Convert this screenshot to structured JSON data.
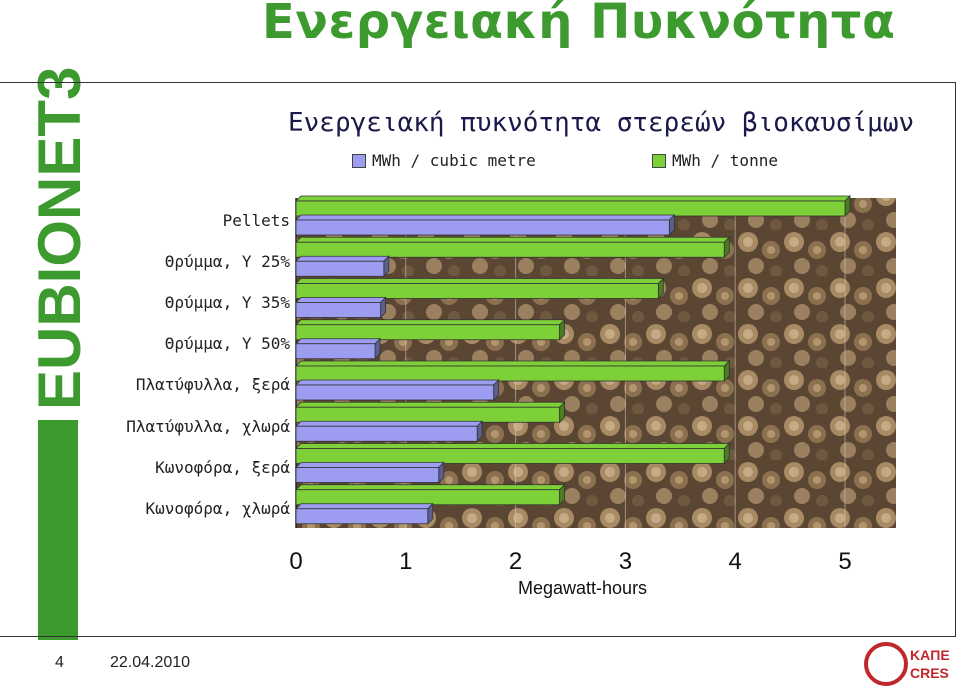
{
  "slide": {
    "title": "Ενεργειακή Πυκνότητα",
    "page_number": "4",
    "date": "22.04.2010",
    "logo_left": "EUBIONET3",
    "logo_right_top": "ΚΑΠΕ",
    "logo_right_bottom": "CRES"
  },
  "colors": {
    "title_green": "#3c9a2e",
    "series_cubic": "#9c9cf0",
    "series_tonne": "#7ed038"
  },
  "chart_data": {
    "type": "bar",
    "orientation": "horizontal",
    "title": "Ενεργειακή πυκνότητα στερεών βιοκαυσίμων",
    "xlabel": "Megawatt-hours",
    "ylabel": "",
    "xlim": [
      0,
      5
    ],
    "xticks": [
      "0",
      "1",
      "2",
      "3",
      "4",
      "5"
    ],
    "legend_position": "top",
    "categories": [
      "Pellets",
      "Θρύμμα, Υ 25%",
      "Θρύμμα, Υ 35%",
      "Θρύμμα, Υ 50%",
      "Πλατύφυλλα, ξερά",
      "Πλατύφυλλα, χλωρά",
      "Κωνοφόρα, ξερά",
      "Κωνοφόρα, χλωρά"
    ],
    "series": [
      {
        "name": "MWh / cubic metre",
        "values": [
          3.4,
          0.8,
          0.77,
          0.72,
          1.8,
          1.65,
          1.3,
          1.2
        ]
      },
      {
        "name": "MWh / tonne",
        "values": [
          5.0,
          3.9,
          3.3,
          2.4,
          3.9,
          2.4,
          3.9,
          2.4
        ]
      }
    ]
  }
}
